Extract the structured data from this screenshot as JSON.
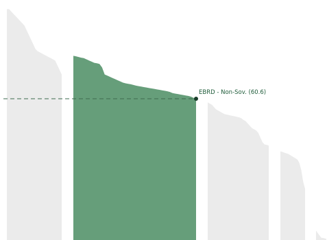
{
  "chart_data": {
    "type": "area",
    "title": "",
    "xlabel": "",
    "ylabel": "",
    "y_scale": "linear",
    "grid": false,
    "legend": "none",
    "ylim": [
      0,
      100
    ],
    "colors": {
      "background_group": "#ebebeb",
      "highlight_group": "#669e7a",
      "reference_line": "#3d6b4f",
      "annotation_text": "#1f5c3a"
    },
    "groups": [
      {
        "highlight": false,
        "values": [
          99,
          99,
          98,
          97,
          96,
          95,
          94,
          93,
          92,
          90,
          88,
          86,
          84,
          82,
          81,
          80.5,
          80,
          79.5,
          79,
          78.5,
          78,
          77.5,
          77,
          75,
          73,
          71
        ]
      },
      {
        "highlight": true,
        "values": [
          79,
          78.8,
          78.5,
          78.2,
          78,
          77.5,
          77,
          76.5,
          76,
          75.8,
          75.5,
          74,
          71,
          70.5,
          70,
          69.5,
          69,
          68.5,
          68,
          67.5,
          67.2,
          67,
          66.8,
          66.5,
          66.2,
          66,
          65.8,
          65.6,
          65.4,
          65.2,
          65,
          64.8,
          64.6,
          64.4,
          64.2,
          64,
          63.8,
          63.5,
          63,
          62.8,
          62.6,
          62.4,
          62.2,
          62,
          61.8,
          61.5,
          61,
          60.6
        ]
      },
      {
        "highlight": false,
        "values": [
          59,
          58.5,
          58,
          57,
          56,
          55.5,
          55,
          54.5,
          54,
          53.8,
          53.6,
          53.4,
          53.2,
          53,
          52.8,
          52.6,
          52.2,
          51.5,
          51,
          50,
          49,
          48,
          47.5,
          47,
          46,
          44,
          42,
          41,
          40.8,
          40.5
        ]
      },
      {
        "highlight": false,
        "values": [
          38,
          37.8,
          37.5,
          37.2,
          37,
          36.5,
          36,
          35.5,
          35,
          34.5,
          33,
          30,
          25,
          22
        ]
      },
      {
        "highlight": false,
        "values": [
          4,
          2.5,
          1,
          0.8,
          0.5
        ]
      }
    ],
    "reference_line": {
      "y": 60.6
    },
    "highlight_point": {
      "group": 1,
      "index": 47,
      "y": 60.6
    },
    "annotations": [
      {
        "text": "EBRD - Non-Sov. (60.6)"
      }
    ]
  }
}
